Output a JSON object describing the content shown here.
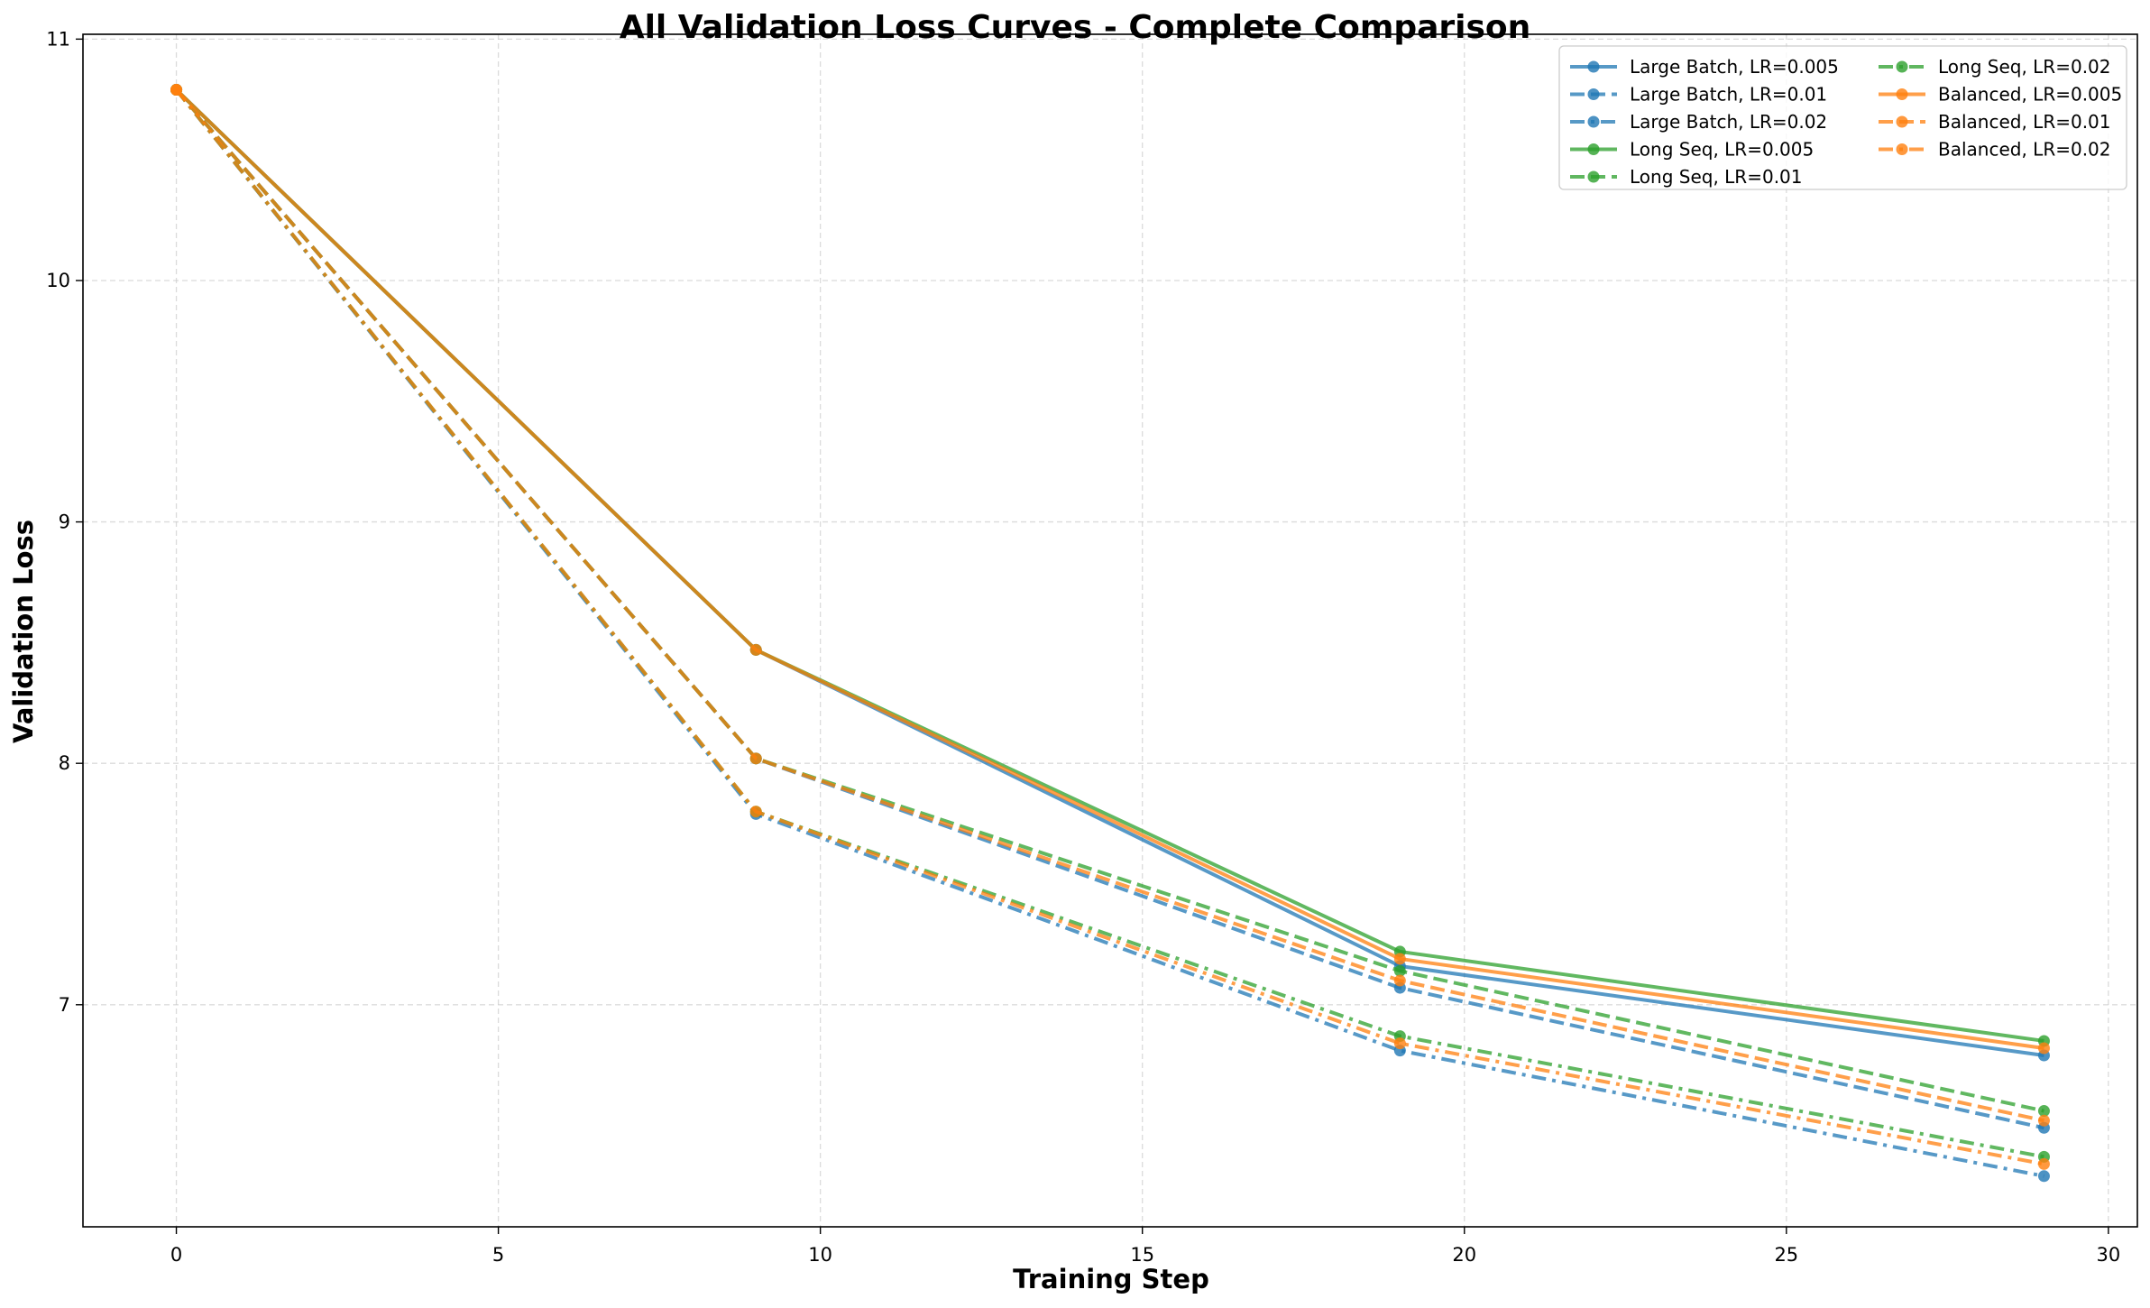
{
  "chart_data": {
    "type": "line",
    "title": "All Validation Loss Curves - Complete Comparison",
    "xlabel": "Training Step",
    "ylabel": "Validation Loss",
    "xlim": [
      -1.45,
      30.45
    ],
    "ylim": [
      6.08,
      11.02
    ],
    "xticks": [
      0,
      5,
      10,
      15,
      20,
      25,
      30
    ],
    "yticks": [
      7,
      8,
      9,
      10,
      11
    ],
    "grid": true,
    "legend_placement": "top-right",
    "legend_columns": 2,
    "x": [
      0,
      9,
      19,
      29
    ],
    "series": [
      {
        "name": "Large Batch, LR=0.005",
        "color": "#1f77b4",
        "dash": "solid",
        "values": [
          10.79,
          8.47,
          7.16,
          6.79
        ]
      },
      {
        "name": "Large Batch, LR=0.01",
        "color": "#1f77b4",
        "dash": "dashed",
        "values": [
          10.79,
          8.02,
          7.07,
          6.49
        ]
      },
      {
        "name": "Large Batch, LR=0.02",
        "color": "#1f77b4",
        "dash": "dashdot",
        "values": [
          10.79,
          7.79,
          6.81,
          6.29
        ]
      },
      {
        "name": "Long Seq, LR=0.005",
        "color": "#2ca02c",
        "dash": "solid",
        "values": [
          10.79,
          8.47,
          7.22,
          6.85
        ]
      },
      {
        "name": "Long Seq, LR=0.01",
        "color": "#2ca02c",
        "dash": "dashed",
        "values": [
          10.79,
          8.02,
          7.14,
          6.56
        ]
      },
      {
        "name": "Long Seq, LR=0.02",
        "color": "#2ca02c",
        "dash": "dashdot",
        "values": [
          10.79,
          7.8,
          6.87,
          6.37
        ]
      },
      {
        "name": "Balanced, LR=0.005",
        "color": "#ff7f0e",
        "dash": "solid",
        "values": [
          10.79,
          8.47,
          7.19,
          6.82
        ]
      },
      {
        "name": "Balanced, LR=0.01",
        "color": "#ff7f0e",
        "dash": "dashed",
        "values": [
          10.79,
          8.02,
          7.1,
          6.52
        ]
      },
      {
        "name": "Balanced, LR=0.02",
        "color": "#ff7f0e",
        "dash": "dashdot",
        "values": [
          10.79,
          7.8,
          6.84,
          6.34
        ]
      }
    ]
  }
}
